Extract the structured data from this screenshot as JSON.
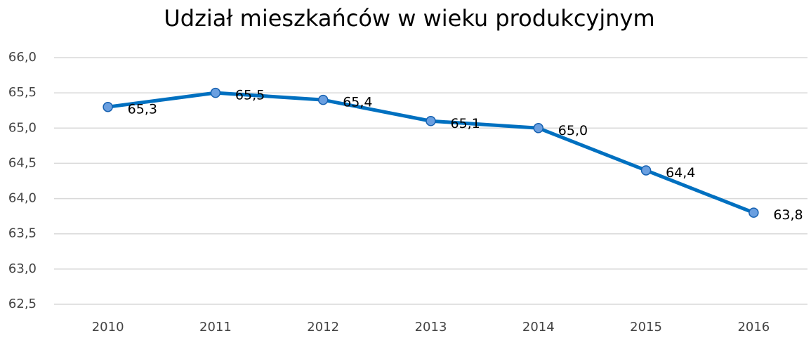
{
  "chart_data": {
    "type": "line",
    "title": "Udział mieszkańców w wieku produkcyjnym",
    "categories": [
      "2010",
      "2011",
      "2012",
      "2013",
      "2014",
      "2015",
      "2016"
    ],
    "series": [
      {
        "name": "Udział mieszkańców w wieku produkcyjnym",
        "color": "#0070c0",
        "marker_color": "#6a9fe0",
        "values": [
          65.3,
          65.5,
          65.4,
          65.1,
          65.0,
          64.4,
          63.8
        ],
        "value_labels": [
          "65,3",
          "65,5",
          "65,4",
          "65,1",
          "65,0",
          "64,4",
          "63,8"
        ]
      }
    ],
    "ylim": [
      62.5,
      66.0
    ],
    "yticks": [
      {
        "value": 62.5,
        "label": "62,5"
      },
      {
        "value": 63,
        "label": "63,0"
      },
      {
        "value": 63.5,
        "label": "63,5"
      },
      {
        "value": 64,
        "label": "64,0"
      },
      {
        "value": 64.5,
        "label": "64,5"
      },
      {
        "value": 65,
        "label": "65,0"
      },
      {
        "value": 65.5,
        "label": "65,5"
      },
      {
        "value": 66,
        "label": "66,0"
      }
    ],
    "grid": true
  }
}
